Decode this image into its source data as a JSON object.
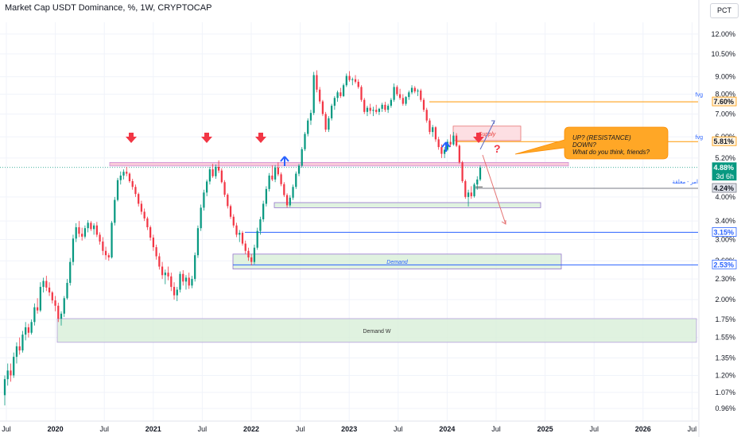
{
  "header": {
    "title": "Market Cap USDT Dominance, %, 1W, CRYPTOCAP",
    "scale_button": "PCT"
  },
  "colors": {
    "up": "#089981",
    "down": "#f23645",
    "resistance_band": "#f8bbd0",
    "supply_box": "#fcd7dc",
    "demand_box": "#d8efd8",
    "orange_line": "#ff9800",
    "blue_line": "#2962ff",
    "grey_line": "#787b86",
    "callout": "#ffa726"
  },
  "chart_data": {
    "type": "candlestick",
    "scale": "log",
    "y_ticks": [
      "12.00%",
      "10.50%",
      "9.00%",
      "8.00%",
      "7.00%",
      "6.00%",
      "5.20%",
      "4.00%",
      "3.40%",
      "3.00%",
      "2.60%",
      "2.30%",
      "2.00%",
      "1.75%",
      "1.55%",
      "1.35%",
      "1.20%",
      "1.07%",
      "0.96%"
    ],
    "x_ticks": [
      "Jul",
      "2020",
      "Jul",
      "2021",
      "Jul",
      "2022",
      "Jul",
      "2023",
      "Jul",
      "2024",
      "Jul",
      "2025",
      "Jul",
      "2026",
      "Jul"
    ],
    "price_labels": [
      {
        "text": "7.60%",
        "value": 7.6,
        "kind": "orange"
      },
      {
        "text": "5.81%",
        "value": 5.81,
        "kind": "orange"
      },
      {
        "text": "4.88%",
        "sub": "3d 6h",
        "value": 4.88,
        "kind": "green"
      },
      {
        "text": "4.24%",
        "value": 4.24,
        "kind": "grey"
      },
      {
        "text": "3.15%",
        "value": 3.15,
        "kind": "blue"
      },
      {
        "text": "2.53%",
        "value": 2.53,
        "kind": "blue"
      }
    ],
    "side_labels": [
      {
        "text": "fvg",
        "value": 8.0
      },
      {
        "text": "fvg",
        "value": 6.0
      },
      {
        "text": "امر - معلقة",
        "value": 4.45
      }
    ],
    "zones": [
      {
        "name": "Supply",
        "label": "Supply",
        "top": 6.45,
        "bottom": 5.85
      },
      {
        "name": "resistance",
        "label": "",
        "top": 5.05,
        "bottom": 4.93
      },
      {
        "name": "support-box",
        "label": "",
        "top": 3.85,
        "bottom": 3.72
      },
      {
        "name": "Demand",
        "label": "Demand",
        "top": 2.72,
        "bottom": 2.46
      },
      {
        "name": "Demand W",
        "label": "Demand W",
        "top": 1.76,
        "bottom": 1.5
      }
    ],
    "candles": [
      [
        1.05,
        1.2,
        0.98,
        1.17
      ],
      [
        1.17,
        1.3,
        1.12,
        1.24
      ],
      [
        1.24,
        1.3,
        1.15,
        1.2
      ],
      [
        1.2,
        1.4,
        1.18,
        1.36
      ],
      [
        1.36,
        1.5,
        1.3,
        1.46
      ],
      [
        1.46,
        1.55,
        1.38,
        1.42
      ],
      [
        1.42,
        1.62,
        1.4,
        1.58
      ],
      [
        1.58,
        1.72,
        1.52,
        1.66
      ],
      [
        1.66,
        1.7,
        1.55,
        1.6
      ],
      [
        1.6,
        1.75,
        1.58,
        1.72
      ],
      [
        1.72,
        1.95,
        1.68,
        1.9
      ],
      [
        1.9,
        2.02,
        1.82,
        1.86
      ],
      [
        1.86,
        2.25,
        1.84,
        2.18
      ],
      [
        2.18,
        2.32,
        2.1,
        2.27
      ],
      [
        2.27,
        2.35,
        2.12,
        2.17
      ],
      [
        2.17,
        2.25,
        2.05,
        2.1
      ],
      [
        2.1,
        2.12,
        1.95,
        1.99
      ],
      [
        1.99,
        2.05,
        1.85,
        1.92
      ],
      [
        1.92,
        1.96,
        1.72,
        1.76
      ],
      [
        1.76,
        1.85,
        1.68,
        1.82
      ],
      [
        1.82,
        2.05,
        1.78,
        2.02
      ],
      [
        2.02,
        2.3,
        2.0,
        2.24
      ],
      [
        2.24,
        2.65,
        2.2,
        2.58
      ],
      [
        2.58,
        3.1,
        2.52,
        3.02
      ],
      [
        3.02,
        3.35,
        2.95,
        3.26
      ],
      [
        3.26,
        3.4,
        3.05,
        3.12
      ],
      [
        3.12,
        3.25,
        2.98,
        3.06
      ],
      [
        3.06,
        3.3,
        3.02,
        3.24
      ],
      [
        3.24,
        3.42,
        3.15,
        3.36
      ],
      [
        3.36,
        3.4,
        3.18,
        3.22
      ],
      [
        3.22,
        3.35,
        3.1,
        3.3
      ],
      [
        3.3,
        3.38,
        3.05,
        3.1
      ],
      [
        3.1,
        3.15,
        2.9,
        2.96
      ],
      [
        2.96,
        3.05,
        2.7,
        2.78
      ],
      [
        2.78,
        2.86,
        2.62,
        2.7
      ],
      [
        2.7,
        2.74,
        2.6,
        2.66
      ],
      [
        2.66,
        3.4,
        2.64,
        3.36
      ],
      [
        3.36,
        4.0,
        3.3,
        3.92
      ],
      [
        3.92,
        4.55,
        3.88,
        4.48
      ],
      [
        4.48,
        4.75,
        4.35,
        4.62
      ],
      [
        4.62,
        4.82,
        4.5,
        4.74
      ],
      [
        4.74,
        4.9,
        4.6,
        4.68
      ],
      [
        4.68,
        4.72,
        4.4,
        4.45
      ],
      [
        4.45,
        4.52,
        4.2,
        4.28
      ],
      [
        4.28,
        4.35,
        4.0,
        4.08
      ],
      [
        4.08,
        4.12,
        3.75,
        3.82
      ],
      [
        3.82,
        3.9,
        3.55,
        3.62
      ],
      [
        3.62,
        3.7,
        3.4,
        3.46
      ],
      [
        3.46,
        3.5,
        3.2,
        3.26
      ],
      [
        3.26,
        3.3,
        2.98,
        3.04
      ],
      [
        3.04,
        3.1,
        2.78,
        2.85
      ],
      [
        2.85,
        2.9,
        2.62,
        2.68
      ],
      [
        2.68,
        2.74,
        2.45,
        2.5
      ],
      [
        2.5,
        2.58,
        2.3,
        2.36
      ],
      [
        2.36,
        2.45,
        2.22,
        2.4
      ],
      [
        2.4,
        2.5,
        2.28,
        2.34
      ],
      [
        2.34,
        2.4,
        2.12,
        2.18
      ],
      [
        2.18,
        2.25,
        2.0,
        2.06
      ],
      [
        2.06,
        2.18,
        1.98,
        2.14
      ],
      [
        2.14,
        2.42,
        2.1,
        2.38
      ],
      [
        2.38,
        2.44,
        2.2,
        2.26
      ],
      [
        2.26,
        2.36,
        2.14,
        2.32
      ],
      [
        2.32,
        2.4,
        2.15,
        2.2
      ],
      [
        2.2,
        2.35,
        2.16,
        2.3
      ],
      [
        2.3,
        2.75,
        2.26,
        2.7
      ],
      [
        2.7,
        3.3,
        2.65,
        3.24
      ],
      [
        3.24,
        3.8,
        3.18,
        3.72
      ],
      [
        3.72,
        4.2,
        3.65,
        4.12
      ],
      [
        4.12,
        4.5,
        4.02,
        4.44
      ],
      [
        4.44,
        4.9,
        4.35,
        4.82
      ],
      [
        4.82,
        5.0,
        4.55,
        4.6
      ],
      [
        4.6,
        4.98,
        4.52,
        4.9
      ],
      [
        4.9,
        5.12,
        4.7,
        4.78
      ],
      [
        4.78,
        4.85,
        4.38,
        4.42
      ],
      [
        4.42,
        4.48,
        4.0,
        4.06
      ],
      [
        4.06,
        4.1,
        3.7,
        3.76
      ],
      [
        3.76,
        3.8,
        3.45,
        3.5
      ],
      [
        3.5,
        3.56,
        3.25,
        3.3
      ],
      [
        3.3,
        3.36,
        3.05,
        3.1
      ],
      [
        3.1,
        3.2,
        2.95,
        3.14
      ],
      [
        3.14,
        3.18,
        2.88,
        2.92
      ],
      [
        2.92,
        2.98,
        2.72,
        2.78
      ],
      [
        2.78,
        2.84,
        2.6,
        2.66
      ],
      [
        2.66,
        2.72,
        2.52,
        2.58
      ],
      [
        2.58,
        2.9,
        2.54,
        2.84
      ],
      [
        2.84,
        3.25,
        2.8,
        3.18
      ],
      [
        3.18,
        3.5,
        3.1,
        3.44
      ],
      [
        3.44,
        3.9,
        3.38,
        3.82
      ],
      [
        3.82,
        4.3,
        3.75,
        4.22
      ],
      [
        4.22,
        4.7,
        4.15,
        4.62
      ],
      [
        4.62,
        4.95,
        4.45,
        4.5
      ],
      [
        4.5,
        4.96,
        4.42,
        4.88
      ],
      [
        4.88,
        5.05,
        4.6,
        4.66
      ],
      [
        4.66,
        4.72,
        4.3,
        4.36
      ],
      [
        4.36,
        4.42,
        4.0,
        4.05
      ],
      [
        4.05,
        4.1,
        3.72,
        3.78
      ],
      [
        3.78,
        4.05,
        3.74,
        3.98
      ],
      [
        3.98,
        4.35,
        3.92,
        4.28
      ],
      [
        4.28,
        4.75,
        4.22,
        4.68
      ],
      [
        4.68,
        5.0,
        4.6,
        4.94
      ],
      [
        4.94,
        5.6,
        4.88,
        5.52
      ],
      [
        5.52,
        6.2,
        5.45,
        6.12
      ],
      [
        6.12,
        6.8,
        6.02,
        6.7
      ],
      [
        6.7,
        7.2,
        6.5,
        7.05
      ],
      [
        7.05,
        9.3,
        6.95,
        9.1
      ],
      [
        9.1,
        9.4,
        8.1,
        8.25
      ],
      [
        8.25,
        8.4,
        7.5,
        7.62
      ],
      [
        7.62,
        7.7,
        6.9,
        7.0
      ],
      [
        7.0,
        7.1,
        6.2,
        6.3
      ],
      [
        6.3,
        6.9,
        6.2,
        6.8
      ],
      [
        6.8,
        7.5,
        6.7,
        7.4
      ],
      [
        7.4,
        7.9,
        7.2,
        7.8
      ],
      [
        7.8,
        8.2,
        7.6,
        8.1
      ],
      [
        8.1,
        8.35,
        7.8,
        7.9
      ],
      [
        7.9,
        8.6,
        7.85,
        8.5
      ],
      [
        8.5,
        9.2,
        8.4,
        9.05
      ],
      [
        9.05,
        9.35,
        8.7,
        8.8
      ],
      [
        8.8,
        8.95,
        8.5,
        8.85
      ],
      [
        8.85,
        9.1,
        8.6,
        8.7
      ],
      [
        8.7,
        8.85,
        8.3,
        8.4
      ],
      [
        8.4,
        8.5,
        7.6,
        7.7
      ],
      [
        7.7,
        7.8,
        7.0,
        7.1
      ],
      [
        7.1,
        7.4,
        6.9,
        7.3
      ],
      [
        7.3,
        7.5,
        7.0,
        7.15
      ],
      [
        7.15,
        7.35,
        6.9,
        7.2
      ],
      [
        7.2,
        7.45,
        7.0,
        7.1
      ],
      [
        7.1,
        7.3,
        6.95,
        7.25
      ],
      [
        7.25,
        7.55,
        7.1,
        7.45
      ],
      [
        7.45,
        7.6,
        7.1,
        7.2
      ],
      [
        7.2,
        7.5,
        7.05,
        7.4
      ],
      [
        7.4,
        7.8,
        7.3,
        7.7
      ],
      [
        7.7,
        8.6,
        7.6,
        8.4
      ],
      [
        8.4,
        8.5,
        7.9,
        8.0
      ],
      [
        8.0,
        8.3,
        7.7,
        7.8
      ],
      [
        7.8,
        8.0,
        7.4,
        7.5
      ],
      [
        7.5,
        7.9,
        7.4,
        7.85
      ],
      [
        7.85,
        8.2,
        7.7,
        8.1
      ],
      [
        8.1,
        8.5,
        8.0,
        8.35
      ],
      [
        8.35,
        8.45,
        8.05,
        8.15
      ],
      [
        8.15,
        8.3,
        7.9,
        8.2
      ],
      [
        8.2,
        8.3,
        7.6,
        7.7
      ],
      [
        7.7,
        7.8,
        7.1,
        7.2
      ],
      [
        7.2,
        7.3,
        6.6,
        6.7
      ],
      [
        6.7,
        6.8,
        6.1,
        6.2
      ],
      [
        6.2,
        6.5,
        6.0,
        6.4
      ],
      [
        6.4,
        6.45,
        5.8,
        5.9
      ],
      [
        5.9,
        6.0,
        5.5,
        5.6
      ],
      [
        5.6,
        5.7,
        5.2,
        5.35
      ],
      [
        5.35,
        5.6,
        5.2,
        5.5
      ],
      [
        5.5,
        5.9,
        5.45,
        5.8
      ],
      [
        5.8,
        6.1,
        5.6,
        5.7
      ],
      [
        5.7,
        6.2,
        5.65,
        6.05
      ],
      [
        6.05,
        6.15,
        5.6,
        5.65
      ],
      [
        5.65,
        5.7,
        5.0,
        5.05
      ],
      [
        5.05,
        5.1,
        4.4,
        4.45
      ],
      [
        4.45,
        4.5,
        3.95,
        4.0
      ],
      [
        4.0,
        4.2,
        3.75,
        4.12
      ],
      [
        4.12,
        4.3,
        3.95,
        4.02
      ],
      [
        4.02,
        4.4,
        3.98,
        4.35
      ],
      [
        4.35,
        4.6,
        4.2,
        4.5
      ],
      [
        4.5,
        4.95,
        4.45,
        4.88
      ]
    ]
  },
  "annotations": {
    "callout_text": [
      "UP?      (RESISTANCE)",
      "DOWN?",
      "What do you think, friends?"
    ],
    "question_mark": "?"
  }
}
